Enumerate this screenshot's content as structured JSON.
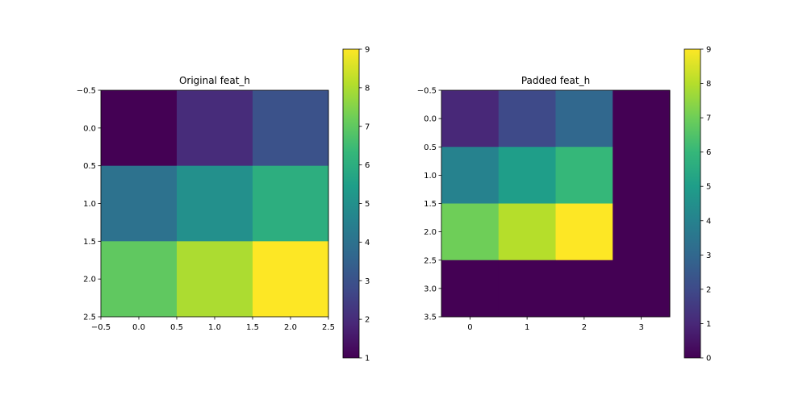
{
  "chart_data": [
    {
      "type": "heatmap",
      "title": "Original feat_h",
      "rows": 3,
      "cols": 3,
      "values": [
        [
          1,
          2,
          3
        ],
        [
          4,
          5,
          6
        ],
        [
          7,
          8,
          9
        ]
      ],
      "xlim": [
        -0.5,
        2.5
      ],
      "ylim": [
        2.5,
        -0.5
      ],
      "xticks": [
        -0.5,
        0.0,
        0.5,
        1.0,
        1.5,
        2.0,
        2.5
      ],
      "xtick_labels": [
        "−0.5",
        "0.0",
        "0.5",
        "1.0",
        "1.5",
        "2.0",
        "2.5"
      ],
      "yticks": [
        -0.5,
        0.0,
        0.5,
        1.0,
        1.5,
        2.0,
        2.5
      ],
      "ytick_labels": [
        "−0.5",
        "0.0",
        "0.5",
        "1.0",
        "1.5",
        "2.0",
        "2.5"
      ],
      "colormap": "viridis",
      "vmin": 1,
      "vmax": 9,
      "colorbar_ticks": [
        1,
        2,
        3,
        4,
        5,
        6,
        7,
        8,
        9
      ],
      "colorbar_tick_labels": [
        "1",
        "2",
        "3",
        "4",
        "5",
        "6",
        "7",
        "8",
        "9"
      ]
    },
    {
      "type": "heatmap",
      "title": "Padded feat_h",
      "rows": 4,
      "cols": 4,
      "values": [
        [
          1,
          2,
          3,
          0
        ],
        [
          4,
          5,
          6,
          0
        ],
        [
          7,
          8,
          9,
          0
        ],
        [
          0,
          0,
          0,
          0
        ]
      ],
      "xlim": [
        -0.5,
        3.5
      ],
      "ylim": [
        3.5,
        -0.5
      ],
      "xticks": [
        0,
        1,
        2,
        3
      ],
      "xtick_labels": [
        "0",
        "1",
        "2",
        "3"
      ],
      "yticks": [
        -0.5,
        0.0,
        0.5,
        1.0,
        1.5,
        2.0,
        2.5,
        3.0,
        3.5
      ],
      "ytick_labels": [
        "−0.5",
        "0.0",
        "0.5",
        "1.0",
        "1.5",
        "2.0",
        "2.5",
        "3.0",
        "3.5"
      ],
      "colormap": "viridis",
      "vmin": 0,
      "vmax": 9,
      "colorbar_ticks": [
        0,
        1,
        2,
        3,
        4,
        5,
        6,
        7,
        8,
        9
      ],
      "colorbar_tick_labels": [
        "0",
        "1",
        "2",
        "3",
        "4",
        "5",
        "6",
        "7",
        "8",
        "9"
      ]
    }
  ]
}
